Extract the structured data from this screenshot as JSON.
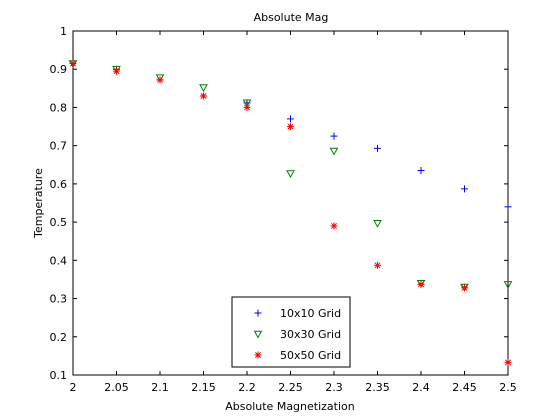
{
  "chart_data": {
    "type": "scatter",
    "title": "Absolute Mag",
    "xlabel": "Absolute Magnetization",
    "ylabel": "Temperature",
    "xlim": [
      2,
      2.5
    ],
    "ylim": [
      0.1,
      1
    ],
    "xticks": [
      2,
      2.05,
      2.1,
      2.15,
      2.2,
      2.25,
      2.3,
      2.35,
      2.4,
      2.45,
      2.5
    ],
    "yticks": [
      0.1,
      0.2,
      0.3,
      0.4,
      0.5,
      0.6,
      0.7,
      0.8,
      0.9,
      1
    ],
    "xtick_labels": [
      "2",
      "2.05",
      "2.1",
      "2.15",
      "2.2",
      "2.25",
      "2.3",
      "2.35",
      "2.4",
      "2.45",
      "2.5"
    ],
    "ytick_labels": [
      "0.1",
      "0.2",
      "0.3",
      "0.4",
      "0.5",
      "0.6",
      "0.7",
      "0.8",
      "0.9",
      "1"
    ],
    "grid": false,
    "legend_position": "bottom-center",
    "series": [
      {
        "name": "10x10 Grid",
        "marker": "plus",
        "color": "#0000ff",
        "x": [
          2.0,
          2.05,
          2.1,
          2.15,
          2.2,
          2.25,
          2.3,
          2.35,
          2.4,
          2.45,
          2.5
        ],
        "y": [
          0.915,
          0.9,
          0.872,
          0.83,
          0.812,
          0.77,
          0.725,
          0.693,
          0.635,
          0.587,
          0.54
        ]
      },
      {
        "name": "30x30 Grid",
        "marker": "triangle-down",
        "color": "#008000",
        "x": [
          2.0,
          2.05,
          2.1,
          2.15,
          2.2,
          2.25,
          2.3,
          2.35,
          2.4,
          2.45,
          2.5
        ],
        "y": [
          0.915,
          0.9,
          0.878,
          0.852,
          0.812,
          0.627,
          0.686,
          0.497,
          0.34,
          0.33,
          0.337
        ]
      },
      {
        "name": "50x50 Grid",
        "marker": "asterisk",
        "color": "#ff0000",
        "x": [
          2.0,
          2.05,
          2.1,
          2.15,
          2.2,
          2.25,
          2.3,
          2.35,
          2.4,
          2.45,
          2.5
        ],
        "y": [
          0.915,
          0.895,
          0.872,
          0.83,
          0.8,
          0.75,
          0.49,
          0.387,
          0.337,
          0.328,
          0.133
        ]
      }
    ]
  }
}
